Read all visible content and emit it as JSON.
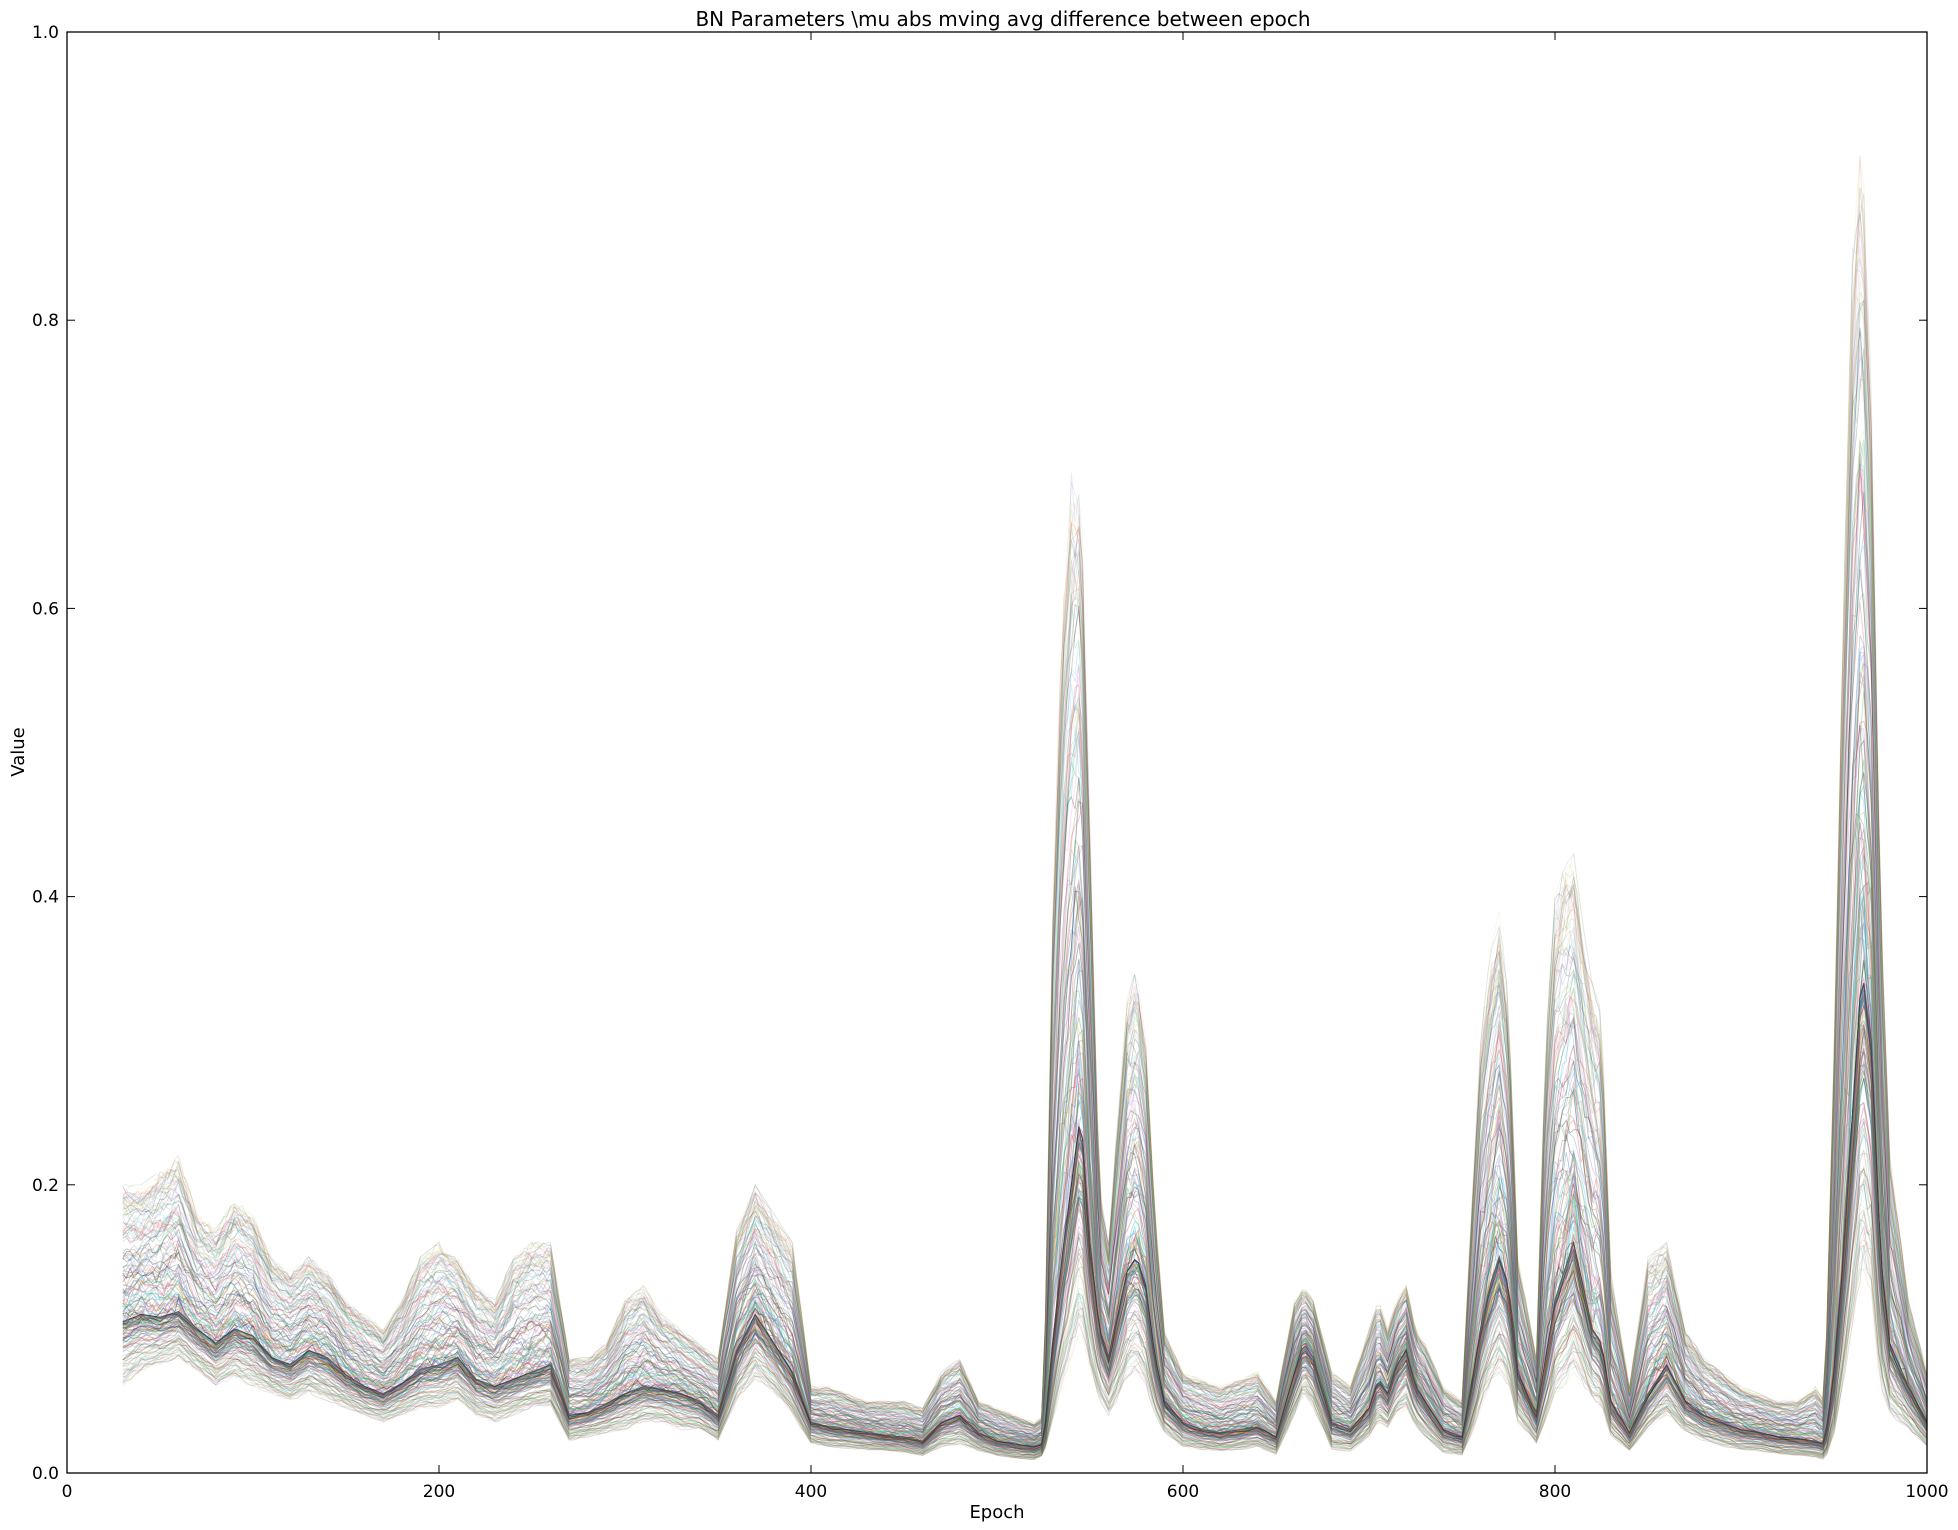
{
  "chart_data": {
    "type": "line",
    "title": "BN Parameters \\mu abs mving avg difference between epoch",
    "xlabel": "Epoch",
    "ylabel": "Value",
    "xlim": [
      0,
      1000
    ],
    "ylim": [
      0.0,
      1.0
    ],
    "xticks": [
      0,
      200,
      400,
      600,
      800,
      1000
    ],
    "xtick_labels": [
      "0",
      "200",
      "400",
      "600",
      "800",
      "1000"
    ],
    "yticks": [
      0.0,
      0.2,
      0.4,
      0.6,
      0.8,
      1.0
    ],
    "ytick_labels": [
      "0.0",
      "0.2",
      "0.4",
      "0.6",
      "0.8",
      "1.0"
    ],
    "grid": false,
    "legend": "none",
    "series_count_estimate": 200,
    "series_colors": [
      "#1f77b4",
      "#2ca02c",
      "#d62728",
      "#9467bd",
      "#17becf",
      "#8c564b",
      "#e377c2",
      "#7f7f7f",
      "#bcbd22",
      "#000000"
    ],
    "envelope": {
      "x": [
        30,
        40,
        50,
        60,
        70,
        80,
        90,
        100,
        110,
        120,
        130,
        140,
        150,
        160,
        170,
        180,
        190,
        200,
        210,
        220,
        230,
        240,
        250,
        260,
        270,
        280,
        290,
        300,
        310,
        320,
        330,
        340,
        350,
        360,
        370,
        380,
        390,
        400,
        410,
        420,
        430,
        440,
        450,
        460,
        470,
        480,
        490,
        500,
        510,
        520,
        525,
        530,
        535,
        540,
        545,
        550,
        555,
        560,
        565,
        570,
        575,
        580,
        585,
        590,
        600,
        610,
        620,
        630,
        640,
        650,
        660,
        665,
        670,
        680,
        690,
        700,
        705,
        710,
        715,
        720,
        725,
        730,
        740,
        750,
        755,
        760,
        765,
        770,
        775,
        780,
        790,
        795,
        800,
        805,
        810,
        815,
        820,
        825,
        830,
        840,
        850,
        860,
        870,
        880,
        890,
        900,
        910,
        920,
        930,
        940,
        945,
        950,
        955,
        960,
        965,
        970,
        975,
        980,
        990,
        1000
      ],
      "median": [
        0.105,
        0.11,
        0.108,
        0.112,
        0.1,
        0.09,
        0.1,
        0.095,
        0.08,
        0.075,
        0.085,
        0.08,
        0.068,
        0.06,
        0.055,
        0.062,
        0.072,
        0.075,
        0.08,
        0.065,
        0.06,
        0.065,
        0.07,
        0.075,
        0.04,
        0.042,
        0.048,
        0.055,
        0.06,
        0.058,
        0.055,
        0.05,
        0.04,
        0.085,
        0.11,
        0.09,
        0.07,
        0.035,
        0.032,
        0.03,
        0.028,
        0.026,
        0.025,
        0.022,
        0.035,
        0.04,
        0.028,
        0.022,
        0.02,
        0.018,
        0.02,
        0.09,
        0.15,
        0.2,
        0.25,
        0.16,
        0.1,
        0.08,
        0.11,
        0.14,
        0.15,
        0.13,
        0.08,
        0.05,
        0.035,
        0.03,
        0.028,
        0.03,
        0.032,
        0.025,
        0.07,
        0.09,
        0.08,
        0.035,
        0.03,
        0.045,
        0.065,
        0.055,
        0.075,
        0.085,
        0.06,
        0.05,
        0.03,
        0.025,
        0.06,
        0.1,
        0.13,
        0.15,
        0.13,
        0.07,
        0.04,
        0.08,
        0.12,
        0.14,
        0.16,
        0.13,
        0.1,
        0.09,
        0.05,
        0.028,
        0.055,
        0.075,
        0.05,
        0.04,
        0.035,
        0.03,
        0.028,
        0.025,
        0.024,
        0.022,
        0.02,
        0.07,
        0.15,
        0.25,
        0.35,
        0.3,
        0.15,
        0.09,
        0.06,
        0.035
      ],
      "low": [
        0.06,
        0.07,
        0.075,
        0.08,
        0.07,
        0.06,
        0.065,
        0.06,
        0.055,
        0.05,
        0.055,
        0.05,
        0.045,
        0.04,
        0.035,
        0.04,
        0.045,
        0.045,
        0.05,
        0.04,
        0.035,
        0.04,
        0.045,
        0.045,
        0.022,
        0.025,
        0.028,
        0.03,
        0.035,
        0.035,
        0.03,
        0.03,
        0.022,
        0.05,
        0.065,
        0.055,
        0.04,
        0.02,
        0.018,
        0.017,
        0.016,
        0.015,
        0.014,
        0.012,
        0.018,
        0.02,
        0.015,
        0.012,
        0.01,
        0.009,
        0.012,
        0.035,
        0.06,
        0.08,
        0.1,
        0.07,
        0.05,
        0.04,
        0.05,
        0.065,
        0.07,
        0.06,
        0.04,
        0.028,
        0.018,
        0.016,
        0.015,
        0.016,
        0.018,
        0.013,
        0.04,
        0.055,
        0.045,
        0.016,
        0.015,
        0.025,
        0.035,
        0.03,
        0.04,
        0.045,
        0.032,
        0.025,
        0.014,
        0.012,
        0.025,
        0.045,
        0.06,
        0.07,
        0.06,
        0.035,
        0.02,
        0.035,
        0.055,
        0.06,
        0.07,
        0.06,
        0.05,
        0.045,
        0.025,
        0.015,
        0.03,
        0.04,
        0.028,
        0.022,
        0.018,
        0.016,
        0.015,
        0.013,
        0.012,
        0.011,
        0.009,
        0.025,
        0.06,
        0.1,
        0.14,
        0.12,
        0.06,
        0.04,
        0.03,
        0.018
      ],
      "high": [
        0.2,
        0.2,
        0.21,
        0.22,
        0.18,
        0.17,
        0.19,
        0.18,
        0.15,
        0.14,
        0.15,
        0.14,
        0.12,
        0.11,
        0.1,
        0.12,
        0.15,
        0.16,
        0.15,
        0.13,
        0.12,
        0.15,
        0.16,
        0.16,
        0.08,
        0.08,
        0.09,
        0.12,
        0.13,
        0.11,
        0.1,
        0.09,
        0.08,
        0.17,
        0.2,
        0.18,
        0.16,
        0.06,
        0.06,
        0.055,
        0.05,
        0.05,
        0.05,
        0.045,
        0.07,
        0.08,
        0.05,
        0.045,
        0.04,
        0.035,
        0.04,
        0.4,
        0.6,
        0.7,
        0.7,
        0.45,
        0.2,
        0.16,
        0.25,
        0.33,
        0.35,
        0.3,
        0.18,
        0.1,
        0.07,
        0.065,
        0.06,
        0.065,
        0.07,
        0.05,
        0.12,
        0.13,
        0.12,
        0.07,
        0.06,
        0.1,
        0.12,
        0.1,
        0.12,
        0.13,
        0.1,
        0.09,
        0.06,
        0.05,
        0.18,
        0.3,
        0.36,
        0.39,
        0.33,
        0.15,
        0.08,
        0.3,
        0.4,
        0.42,
        0.43,
        0.38,
        0.34,
        0.32,
        0.14,
        0.06,
        0.15,
        0.16,
        0.1,
        0.08,
        0.07,
        0.06,
        0.055,
        0.05,
        0.05,
        0.06,
        0.05,
        0.3,
        0.6,
        0.85,
        0.93,
        0.75,
        0.4,
        0.22,
        0.12,
        0.07
      ]
    }
  }
}
